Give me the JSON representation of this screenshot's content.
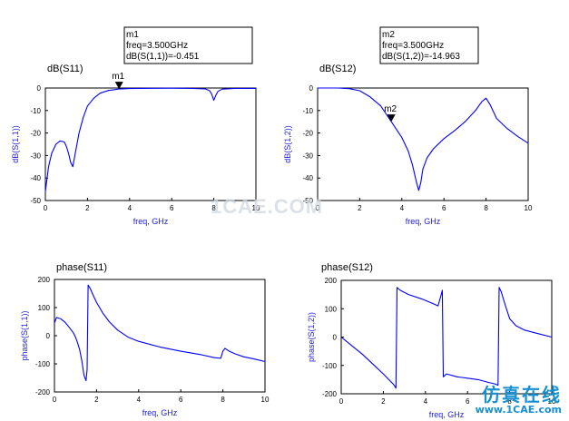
{
  "chart_data": [
    {
      "type": "line",
      "title": "dB(S11)",
      "xlabel": "freq, GHz",
      "ylabel": "dB(S(1,1))",
      "xlim": [
        0,
        10
      ],
      "ylim": [
        -50,
        0
      ],
      "xticks": [
        0,
        2,
        4,
        6,
        8,
        10
      ],
      "yticks": [
        0,
        -10,
        -20,
        -30,
        -40,
        -50
      ],
      "color": "#0000ff",
      "series": [
        {
          "x": [
            0,
            0.15,
            0.3,
            0.5,
            0.7,
            0.9,
            1.0,
            1.1,
            1.2,
            1.3,
            1.4,
            1.6,
            1.8,
            2.0,
            2.3,
            2.6,
            3.0,
            3.5,
            4.0,
            5.0,
            6.0,
            7.0,
            7.6,
            7.8,
            7.9,
            8.0,
            8.1,
            8.2,
            8.4,
            9.0,
            10.0
          ],
          "y": [
            -46,
            -35,
            -29,
            -25,
            -23.5,
            -24,
            -26,
            -29,
            -33,
            -35,
            -30,
            -20,
            -13,
            -8,
            -4.5,
            -2.3,
            -1.1,
            -0.451,
            -0.25,
            -0.12,
            -0.1,
            -0.15,
            -0.4,
            -1.2,
            -2.8,
            -5.5,
            -3.2,
            -1.5,
            -0.5,
            -0.2,
            -0.15
          ]
        }
      ],
      "marker": {
        "name": "m1",
        "freq_text": "freq=3.500GHz",
        "value_text": "dB(S(1,1))=-0.451",
        "x": 3.5,
        "y": -0.451
      }
    },
    {
      "type": "line",
      "title": "dB(S12)",
      "xlabel": "freq, GHz",
      "ylabel": "dB(S(1,2))",
      "xlim": [
        0,
        10
      ],
      "ylim": [
        -50,
        0
      ],
      "xticks": [
        0,
        2,
        4,
        6,
        8,
        10
      ],
      "yticks": [
        0,
        -10,
        -20,
        -30,
        -40,
        -50
      ],
      "color": "#0000ff",
      "series": [
        {
          "x": [
            0,
            1.0,
            1.5,
            2.0,
            2.5,
            3.0,
            3.5,
            4.0,
            4.3,
            4.5,
            4.7,
            4.8,
            4.9,
            5.0,
            5.2,
            5.5,
            6.0,
            6.5,
            7.0,
            7.5,
            7.8,
            8.0,
            8.2,
            8.5,
            9.0,
            9.5,
            10.0
          ],
          "y": [
            0,
            0,
            -0.3,
            -1.2,
            -4,
            -8,
            -14.963,
            -22,
            -28,
            -34,
            -42,
            -45.5,
            -42,
            -36,
            -31,
            -27,
            -22.5,
            -19,
            -15,
            -10,
            -6,
            -4.5,
            -7.5,
            -13.5,
            -18,
            -21.5,
            -24.5
          ]
        }
      ],
      "marker": {
        "name": "m2",
        "freq_text": "freq=3.500GHz",
        "value_text": "dB(S(1,2))=-14.963",
        "x": 3.5,
        "y": -14.963
      }
    },
    {
      "type": "line",
      "title": "phase(S11)",
      "xlabel": "freq, GHz",
      "ylabel": "phase(S(1,1))",
      "xlim": [
        0,
        10
      ],
      "ylim": [
        -200,
        200
      ],
      "xticks": [
        0,
        2,
        4,
        6,
        8,
        10
      ],
      "yticks": [
        200,
        100,
        0,
        -100,
        -200
      ],
      "color": "#0000ff",
      "series": [
        {
          "x": [
            0,
            0.1,
            0.3,
            0.5,
            0.7,
            0.9,
            1.0,
            1.1,
            1.2,
            1.3,
            1.4,
            1.5,
            1.55,
            1.6,
            1.7,
            1.8,
            2.0,
            2.3,
            2.6,
            3.0,
            3.5,
            4.0,
            5.0,
            6.0,
            7.0,
            7.6,
            7.9,
            8.0,
            8.1,
            8.3,
            8.6,
            9.0,
            9.5,
            10.0
          ],
          "y": [
            45,
            65,
            60,
            48,
            30,
            10,
            -5,
            -25,
            -50,
            -90,
            -140,
            -160,
            -120,
            180,
            168,
            150,
            118,
            80,
            50,
            20,
            -5,
            -20,
            -40,
            -55,
            -68,
            -78,
            -80,
            -55,
            -45,
            -55,
            -65,
            -75,
            -83,
            -92
          ]
        }
      ]
    },
    {
      "type": "line",
      "title": "phase(S12)",
      "xlabel": "freq, GHz",
      "ylabel": "phase(S(1,2))",
      "xlim": [
        0,
        10
      ],
      "ylim": [
        -200,
        200
      ],
      "xticks": [
        0,
        2,
        4,
        6,
        8,
        10
      ],
      "yticks": [
        200,
        100,
        0,
        -100,
        -200
      ],
      "color": "#0000ff",
      "series": [
        {
          "x": [
            0,
            0.5,
            1.0,
            1.5,
            2.0,
            2.5,
            2.6,
            2.65,
            2.8,
            3.2,
            3.8,
            4.3,
            4.6,
            4.75,
            4.8,
            4.85,
            5.0,
            5.5,
            6.0,
            6.5,
            7.0,
            7.3,
            7.45,
            7.5,
            7.6,
            7.8,
            8.0,
            8.3,
            8.7,
            9.2,
            10.0
          ],
          "y": [
            0,
            -30,
            -60,
            -95,
            -130,
            -168,
            -180,
            175,
            165,
            150,
            135,
            120,
            110,
            150,
            165,
            -140,
            -130,
            -140,
            -145,
            -150,
            -160,
            -165,
            -170,
            175,
            160,
            110,
            65,
            40,
            25,
            15,
            0
          ]
        }
      ]
    }
  ],
  "watermark": {
    "center": "1CAE.COM",
    "cn": "仿真在线",
    "url": "www.1CAE.com"
  }
}
